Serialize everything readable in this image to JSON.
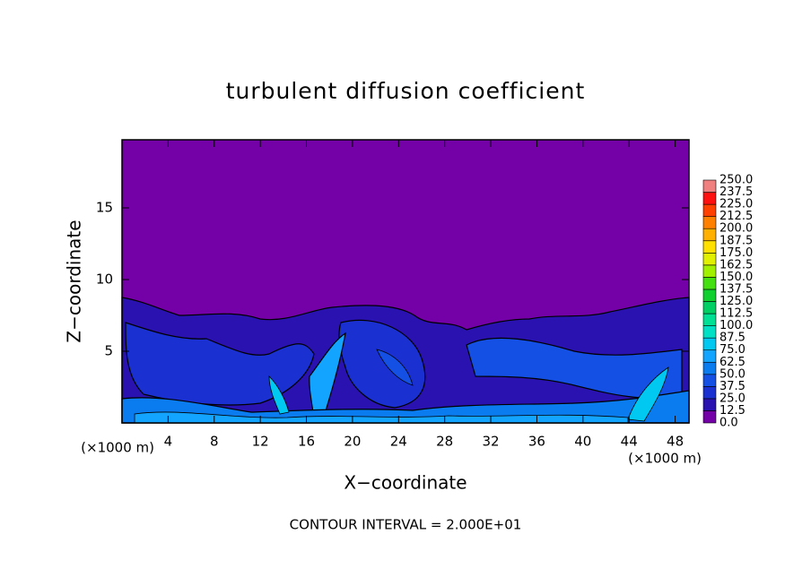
{
  "chart_data": {
    "type": "contour",
    "title": "turbulent diffusion coefficient",
    "x_label": "X−coordinate",
    "y_label": "Z−coordinate",
    "x_unit": "(×1000 m)",
    "annotation": "CONTOUR INTERVAL = 2.000E+01",
    "xlim": [
      0,
      49.2
    ],
    "ylim": [
      0,
      19.75
    ],
    "xticks": [
      4,
      8,
      12,
      16,
      20,
      24,
      28,
      32,
      36,
      40,
      44,
      48
    ],
    "yticks": [
      5,
      10,
      15
    ],
    "colorbar": {
      "levels": [
        {
          "value": 0,
          "label": "0.0"
        },
        12.5,
        {
          "value": 25,
          "label": "25.0"
        },
        37.5,
        {
          "value": 50,
          "label": "50.0"
        },
        62.5,
        {
          "value": 75,
          "label": "75.0"
        },
        87.5,
        {
          "value": 100,
          "label": "100.0"
        },
        112.5,
        {
          "value": 125,
          "label": "125.0"
        },
        137.5,
        {
          "value": 150,
          "label": "150.0"
        },
        162.5,
        {
          "value": 175,
          "label": "175.0"
        },
        187.5,
        {
          "value": 200,
          "label": "200.0"
        },
        212.5,
        {
          "value": 225,
          "label": "225.0"
        },
        237.5,
        {
          "value": 250,
          "label": "250.0"
        }
      ],
      "colors": [
        "#7400a8",
        "#2a12b0",
        "#1a30d0",
        "#1450e4",
        "#0a7cf0",
        "#12a4ff",
        "#00c8f0",
        "#00e0c4",
        "#00e094",
        "#00d064",
        "#10d030",
        "#44e010",
        "#a0f000",
        "#e0f000",
        "#ffe000",
        "#ffb000",
        "#ff8000",
        "#ff4000",
        "#ff1010",
        "#f08080"
      ]
    }
  }
}
